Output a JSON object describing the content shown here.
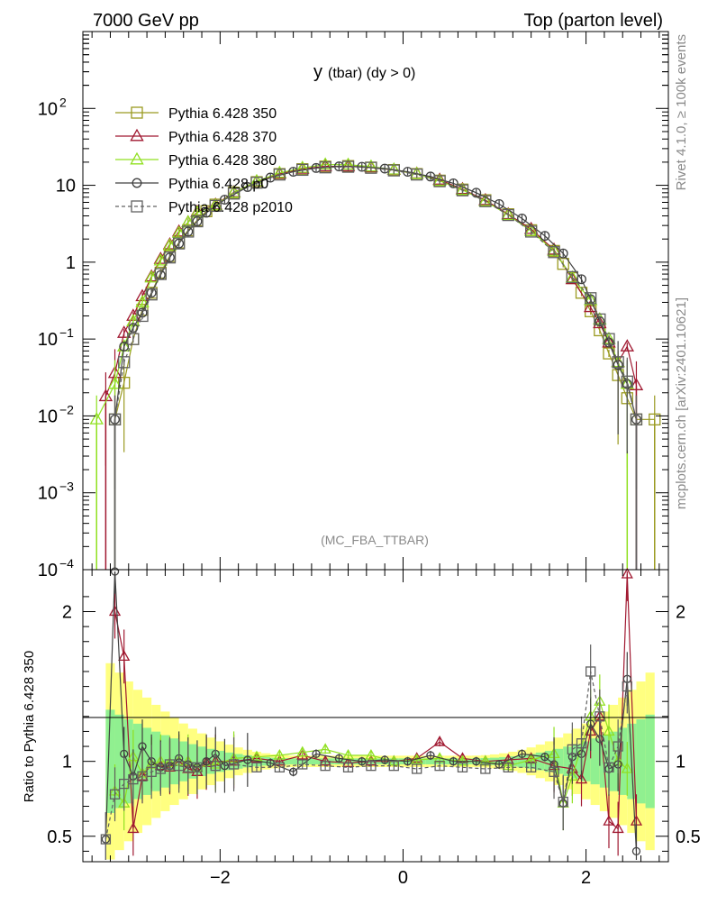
{
  "header": {
    "left": "7000 GeV pp",
    "right": "Top (parton level)"
  },
  "side": {
    "rivet": "Rivet 4.1.0, ≥ 100k events",
    "mcplots": "mcplots.cern.ch [arXiv:2401.10621]"
  },
  "watermark": "(MC_FBA_TTBAR)",
  "chart_data": {
    "type": "line",
    "title_main": "y",
    "title_sub": "(tbar) (dy > 0)",
    "xlabel": "",
    "xlim": [
      -3.5,
      2.9
    ],
    "x_ticks": [
      "−2",
      "0",
      "2"
    ],
    "x_tick_values": [
      -2,
      0,
      2
    ],
    "main": {
      "yscale": "log",
      "ylim": [
        0.0001,
        1000
      ],
      "y_ticks": [
        {
          "v": 100,
          "base": "10",
          "exp": "2"
        },
        {
          "v": 10,
          "base": "10",
          "exp": ""
        },
        {
          "v": 1,
          "base": "1",
          "exp": ""
        },
        {
          "v": 0.1,
          "base": "10",
          "exp": "−1"
        },
        {
          "v": 0.01,
          "base": "10",
          "exp": "−2"
        },
        {
          "v": 0.001,
          "base": "10",
          "exp": "−3"
        },
        {
          "v": 0.0001,
          "base": "10",
          "exp": "−4"
        }
      ]
    },
    "ratio": {
      "ylabel": "Ratio to Pythia 6.428 350",
      "ylim": [
        0.33,
        2.28
      ],
      "y_ticks": [
        {
          "v": 0.5,
          "label": "0.5"
        },
        {
          "v": 1,
          "label": "1"
        },
        {
          "v": 2,
          "label": "2"
        }
      ]
    },
    "series": [
      {
        "name": "Pythia 6.428 350",
        "color": "#9a9a20",
        "marker": "square",
        "dash": false,
        "x": [
          -3.15,
          -3.05,
          -2.95,
          -2.85,
          -2.75,
          -2.65,
          -2.55,
          -2.45,
          -2.35,
          -2.25,
          -2.15,
          -2.05,
          -1.85,
          -1.6,
          -1.35,
          -1.1,
          -0.85,
          -0.6,
          -0.35,
          -0.1,
          0.15,
          0.4,
          0.65,
          0.9,
          1.15,
          1.4,
          1.65,
          1.75,
          1.85,
          1.95,
          2.05,
          2.15,
          2.25,
          2.35,
          2.45,
          2.55,
          2.75
        ],
        "y": [
          0.009,
          0.027,
          0.1,
          0.24,
          0.4,
          0.73,
          1.2,
          1.8,
          2.6,
          3.5,
          4.6,
          5.6,
          8,
          11,
          14,
          16.2,
          17.5,
          17.8,
          17,
          15.8,
          14,
          11.5,
          8.8,
          6.4,
          4.2,
          2.6,
          1.4,
          0.95,
          0.62,
          0.4,
          0.23,
          0.13,
          0.065,
          0.034,
          0.017,
          0.009,
          0.009
        ]
      },
      {
        "name": "Pythia 6.428 370",
        "color": "#a01830",
        "marker": "triangle",
        "dash": false,
        "x": [
          -3.25,
          -3.15,
          -3.05,
          -2.95,
          -2.85,
          -2.75,
          -2.65,
          -2.55,
          -2.45,
          -2.35,
          -2.25,
          -2.05,
          -1.85,
          -1.6,
          -1.35,
          -1.1,
          -0.85,
          -0.6,
          -0.35,
          -0.1,
          0.15,
          0.4,
          0.65,
          0.9,
          1.15,
          1.4,
          1.65,
          1.85,
          2.05,
          2.15,
          2.25,
          2.35,
          2.45,
          2.55
        ],
        "y": [
          0.018,
          0.036,
          0.12,
          0.2,
          0.36,
          0.65,
          1.1,
          1.7,
          2.5,
          3.3,
          4.5,
          5.6,
          8.1,
          11.2,
          14.1,
          16.4,
          17.6,
          17.6,
          17.1,
          15.9,
          14.2,
          11.8,
          8.9,
          6.4,
          4.2,
          2.7,
          1.45,
          0.6,
          0.26,
          0.16,
          0.09,
          0.05,
          0.08,
          0.025
        ]
      },
      {
        "name": "Pythia 6.428 380",
        "color": "#90e020",
        "marker": "triangle",
        "dash": false,
        "x": [
          -3.35,
          -3.15,
          -3.05,
          -2.95,
          -2.85,
          -2.75,
          -2.65,
          -2.55,
          -2.45,
          -2.35,
          -2.25,
          -2.05,
          -1.85,
          -1.6,
          -1.35,
          -1.1,
          -0.85,
          -0.6,
          -0.35,
          -0.1,
          0.15,
          0.4,
          0.65,
          0.9,
          1.15,
          1.4,
          1.65,
          1.85,
          2.05,
          2.15,
          2.25,
          2.35,
          2.45
        ],
        "y": [
          0.009,
          0.026,
          0.08,
          0.17,
          0.3,
          0.63,
          1.05,
          1.65,
          2.4,
          3.3,
          4.4,
          5.5,
          8,
          11.3,
          14.5,
          16.8,
          18.6,
          18.5,
          17.5,
          16,
          14.1,
          11.4,
          8.7,
          6.2,
          4.1,
          2.55,
          1.4,
          0.63,
          0.32,
          0.18,
          0.1,
          0.05,
          0.026
        ]
      },
      {
        "name": "Pythia 6.428 p0",
        "color": "#404040",
        "marker": "circle",
        "dash": false,
        "x": [
          -3.15,
          -3.05,
          -2.95,
          -2.85,
          -2.75,
          -2.65,
          -2.55,
          -2.45,
          -2.35,
          -2.25,
          -2.15,
          -1.95,
          -1.7,
          -1.45,
          -1.2,
          -0.95,
          -0.7,
          -0.45,
          -0.2,
          0.05,
          0.3,
          0.55,
          0.8,
          1.05,
          1.3,
          1.55,
          1.75,
          1.95,
          2.05,
          2.15,
          2.25,
          2.35,
          2.45,
          2.55
        ],
        "y": [
          0.009,
          0.08,
          0.14,
          0.22,
          0.4,
          0.68,
          1.15,
          1.75,
          2.5,
          3.4,
          4.4,
          6.5,
          9.5,
          12.6,
          15,
          16.8,
          17.6,
          17.4,
          16.5,
          15,
          13,
          10.6,
          8,
          5.7,
          3.7,
          2.2,
          1.3,
          0.6,
          0.33,
          0.17,
          0.09,
          0.046,
          0.026,
          0.009
        ]
      },
      {
        "name": "Pythia 6.428 p2010",
        "color": "#606060",
        "marker": "square",
        "dash": true,
        "x": [
          -3.15,
          -3.05,
          -2.95,
          -2.85,
          -2.75,
          -2.65,
          -2.55,
          -2.45,
          -2.35,
          -2.25,
          -2.05,
          -1.85,
          -1.6,
          -1.35,
          -1.1,
          -0.85,
          -0.6,
          -0.35,
          -0.1,
          0.15,
          0.4,
          0.65,
          0.9,
          1.15,
          1.4,
          1.65,
          1.85,
          2.05,
          2.15,
          2.25,
          2.35,
          2.45,
          2.55
        ],
        "y": [
          0.009,
          0.05,
          0.1,
          0.2,
          0.38,
          0.7,
          1.15,
          1.75,
          2.5,
          3.4,
          5.4,
          7.8,
          10.8,
          13.8,
          15.9,
          17.1,
          17.4,
          16.9,
          15.6,
          13.8,
          11.3,
          8.6,
          6.2,
          4.1,
          2.5,
          1.35,
          0.64,
          0.34,
          0.18,
          0.1,
          0.05,
          0.028,
          0.009
        ]
      }
    ],
    "ratio_series": [
      {
        "name": "Pythia 6.428 370",
        "x": [
          -3.15,
          -3.05,
          -2.95,
          -2.85,
          -2.75,
          -2.65,
          -2.55,
          -2.45,
          -2.35,
          -2.25,
          -2.15,
          -2.05,
          -1.85,
          -1.6,
          -1.35,
          -1.1,
          -0.85,
          -0.6,
          -0.35,
          -0.1,
          0.15,
          0.4,
          0.65,
          0.9,
          1.15,
          1.4,
          1.65,
          1.85,
          1.95,
          2.05,
          2.15,
          2.25,
          2.35,
          2.45,
          2.55
        ],
        "y": [
          2,
          1.7,
          0.55,
          0.9,
          0.98,
          0.97,
          0.96,
          1.0,
          0.95,
          0.93,
          0.99,
          1.0,
          1.0,
          1.02,
          1.0,
          1.04,
          1.0,
          0.99,
          1.0,
          1.0,
          1.02,
          1.13,
          1.02,
          1.0,
          1.01,
          1.02,
          0.97,
          0.95,
          0.88,
          1.2,
          1.3,
          0.6,
          0.55,
          2.25,
          0.6
        ]
      },
      {
        "name": "Pythia 6.428 380",
        "x": [
          -3.15,
          -3.05,
          -2.95,
          -2.85,
          -2.75,
          -2.65,
          -2.55,
          -2.45,
          -2.35,
          -2.25,
          -2.05,
          -1.85,
          -1.6,
          -1.35,
          -1.1,
          -0.85,
          -0.6,
          -0.35,
          -0.1,
          0.15,
          0.4,
          0.65,
          0.9,
          1.15,
          1.4,
          1.65,
          1.75,
          1.85,
          2.05,
          2.15,
          2.25,
          2.35,
          2.45
        ],
        "y": [
          0.8,
          0.72,
          1.03,
          0.92,
          0.98,
          1.0,
          0.99,
          1.0,
          1.0,
          0.96,
          0.98,
          1.02,
          1.03,
          1.04,
          1.06,
          1.08,
          1.04,
          1.04,
          1.0,
          1.01,
          1.02,
          1.0,
          1.0,
          0.97,
          1.01,
          1.05,
          0.72,
          0.9,
          1.3,
          1.4,
          1.2,
          1.0,
          0.95
        ]
      },
      {
        "name": "Pythia 6.428 p0",
        "x": [
          -3.25,
          -3.15,
          -3.05,
          -2.95,
          -2.85,
          -2.75,
          -2.65,
          -2.55,
          -2.45,
          -2.35,
          -2.25,
          -2.15,
          -2.05,
          -1.95,
          -1.7,
          -1.45,
          -1.2,
          -0.95,
          -0.7,
          -0.45,
          -0.2,
          0.05,
          0.3,
          0.55,
          0.8,
          1.05,
          1.3,
          1.55,
          1.65,
          1.75,
          1.85,
          1.95,
          2.05,
          2.15,
          2.25,
          2.35,
          2.45,
          2.55
        ],
        "y": [
          0.48,
          2.3,
          1.05,
          0.9,
          1.1,
          1.0,
          0.96,
          0.97,
          1.02,
          0.98,
          0.96,
          1.0,
          1.05,
          0.97,
          1.01,
          0.99,
          0.93,
          1.05,
          1.02,
          1.0,
          1.01,
          1.0,
          1.04,
          1.0,
          1.0,
          0.98,
          1.05,
          1.03,
          0.98,
          0.72,
          1.03,
          1.05,
          1.25,
          1.15,
          0.95,
          0.98,
          1.55,
          0.4
        ]
      },
      {
        "name": "Pythia 6.428 p2010",
        "x": [
          -3.25,
          -3.15,
          -3.05,
          -2.95,
          -2.85,
          -2.75,
          -2.65,
          -2.55,
          -2.45,
          -2.35,
          -2.25,
          -2.05,
          -1.85,
          -1.6,
          -1.35,
          -1.1,
          -0.85,
          -0.6,
          -0.35,
          -0.1,
          0.15,
          0.4,
          0.65,
          0.9,
          1.15,
          1.4,
          1.65,
          1.75,
          1.85,
          1.95,
          2.05,
          2.15,
          2.25,
          2.35,
          2.45
        ],
        "y": [
          0.48,
          0.78,
          0.85,
          0.88,
          0.9,
          0.93,
          0.95,
          0.98,
          0.97,
          0.96,
          0.96,
          0.97,
          0.98,
          0.96,
          0.96,
          0.98,
          0.97,
          0.96,
          0.97,
          0.97,
          0.95,
          0.97,
          0.96,
          0.95,
          0.96,
          0.96,
          0.93,
          0.73,
          1.08,
          1.12,
          1.6,
          1.3,
          0.96,
          1.1,
          1.5
        ]
      }
    ]
  }
}
